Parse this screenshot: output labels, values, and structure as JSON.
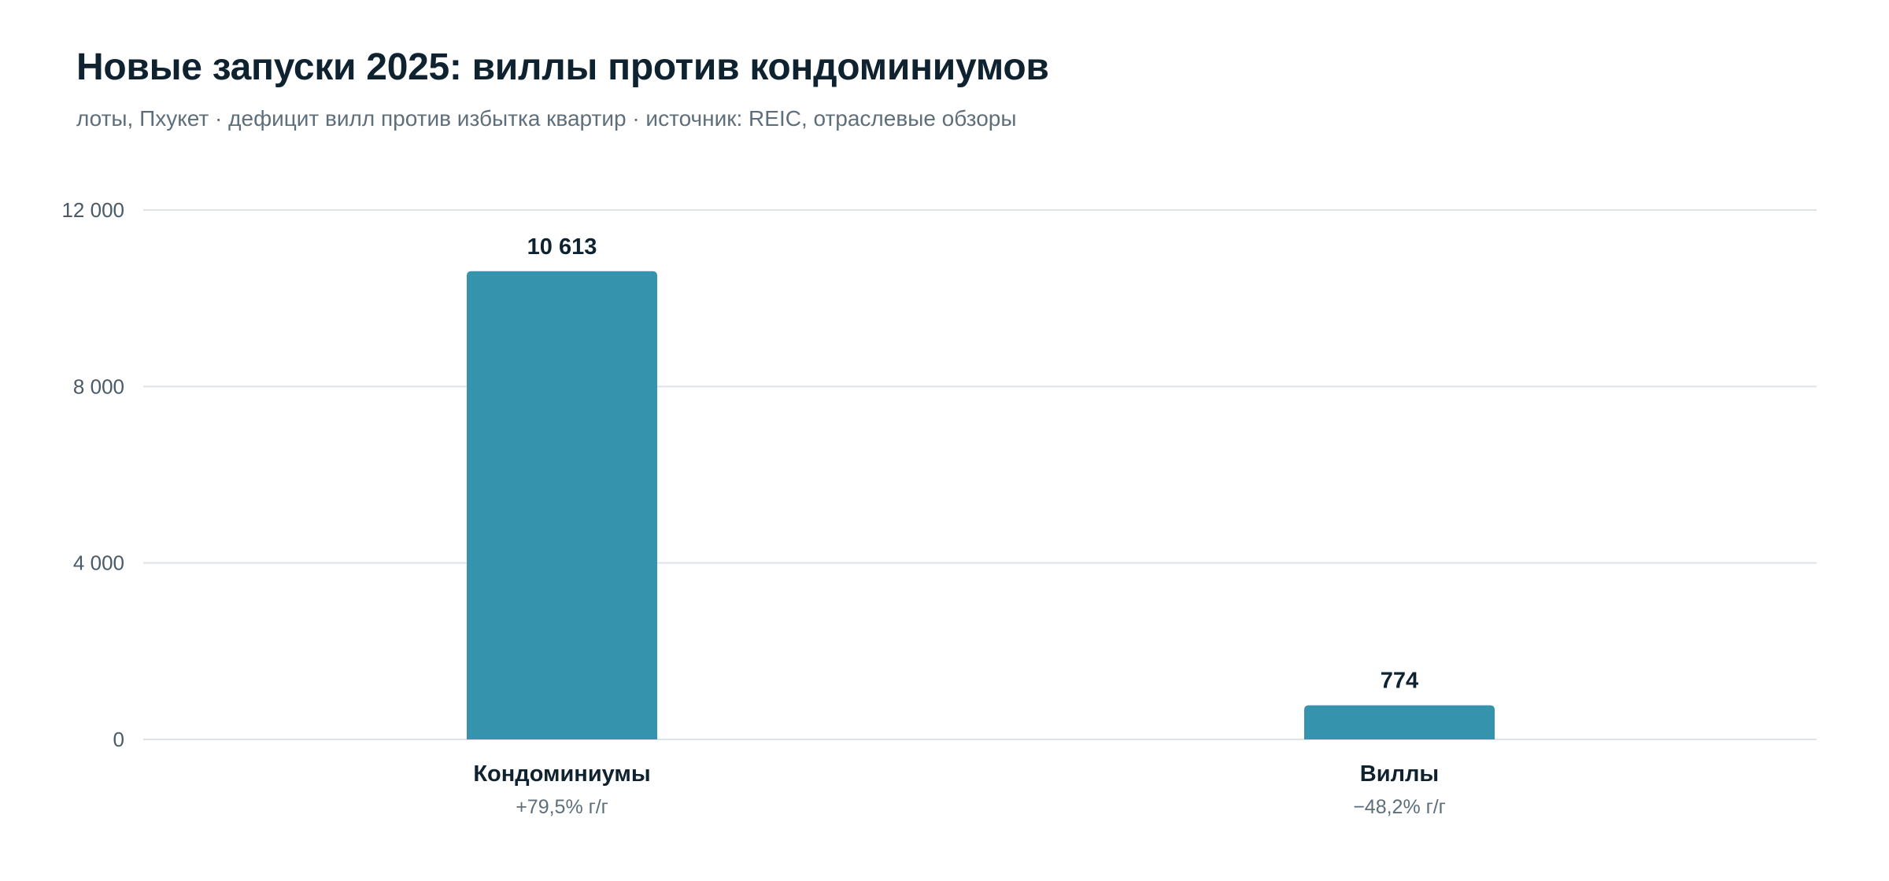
{
  "header": {
    "title": "Новые запуски 2025: виллы против кондоминиумов",
    "subtitle": "лоты, Пхукет · дефицит вилл против избытка квартир · источник: REIC, отраслевые обзоры"
  },
  "colors": {
    "bar": "#3693ad",
    "gridline": "#dde3e8",
    "axis_text": "#4a5a66",
    "value_text": "#0f2230",
    "category_text": "#0f2230",
    "change_text": "#5e6f7b"
  },
  "chart_data": {
    "type": "bar",
    "title": "Новые запуски 2025: виллы против кондоминиумов",
    "subtitle": "лоты, Пхукет · дефицит вилл против избытка квартир · источник: REIC, отраслевые обзоры",
    "categories": [
      "Кондоминиумы",
      "Виллы"
    ],
    "values": [
      10613,
      774
    ],
    "value_labels": [
      "10 613",
      "774"
    ],
    "category_notes": [
      "+79,5% г/г",
      "−48,2% г/г"
    ],
    "ylim": [
      0,
      12000
    ],
    "yticks": [
      0,
      4000,
      8000,
      12000
    ],
    "ytick_labels": [
      "0",
      "4 000",
      "8 000",
      "12 000"
    ],
    "grid": true,
    "legend": "none"
  }
}
